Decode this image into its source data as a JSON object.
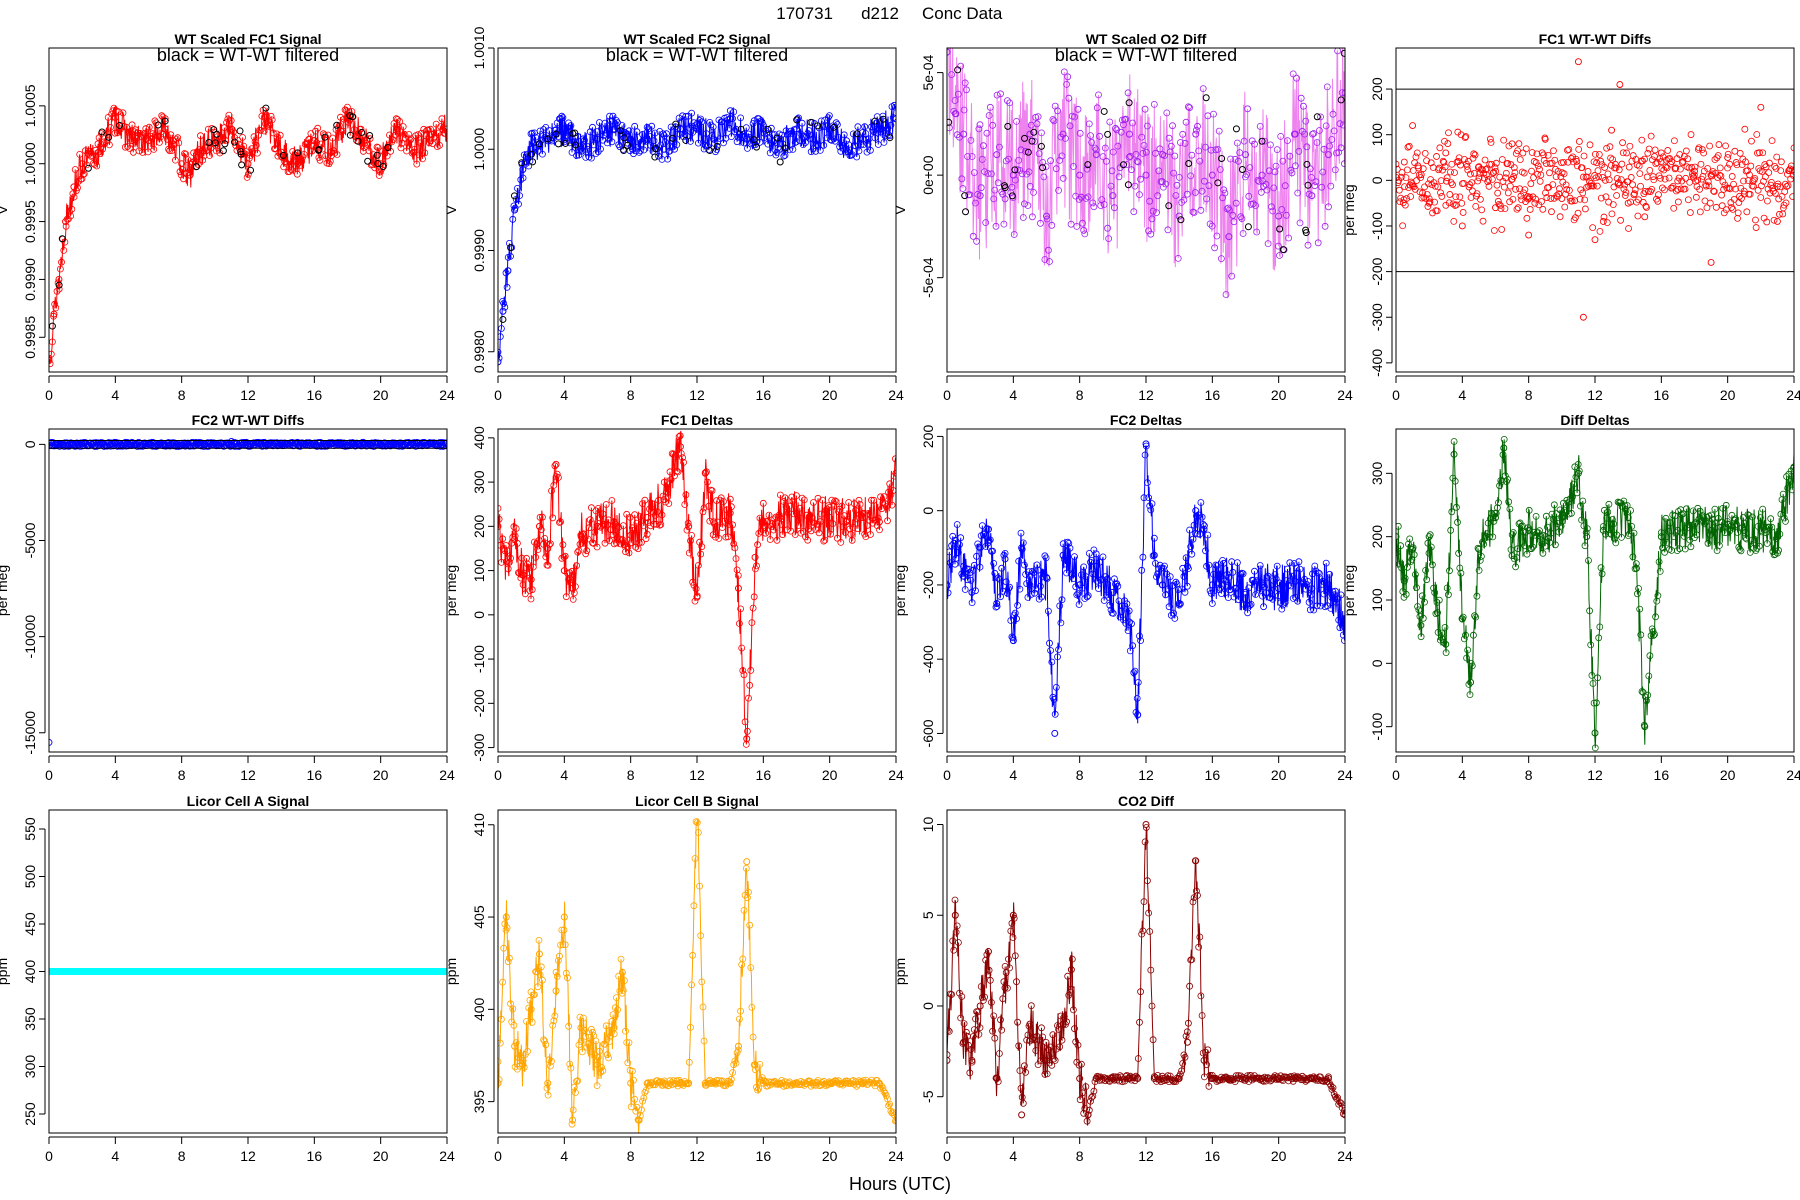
{
  "figure": {
    "title_date": "170731",
    "title_day": "d212",
    "title_label": "Conc Data",
    "xlabel": "Hours (UTC)"
  },
  "colors": {
    "red": "#ff0000",
    "blue": "#0000ff",
    "violet": "#ee82ee",
    "purple": "#a020f0",
    "green": "#006400",
    "cyan": "#00ffff",
    "orange": "#ffa500",
    "darkred": "#8b0000",
    "black": "#000000"
  },
  "chart_data": [
    {
      "id": "fc1_signal",
      "type": "line",
      "title": "WT Scaled FC1 Signal",
      "subtitle": "black = WT-WT filtered",
      "ylabel": "V",
      "xlim": [
        0,
        24
      ],
      "ylim": [
        0.9982,
        1.001
      ],
      "xticks": [
        "0",
        "4",
        "8",
        "12",
        "16",
        "20",
        "24"
      ],
      "yticks": [
        0.9985,
        0.999,
        0.9995,
        1.0,
        1.0005
      ],
      "ytick_labels": [
        "0.9985",
        "0.9990",
        "0.9995",
        "1.0000",
        "1.0005"
      ],
      "color": "red",
      "point_color": "red",
      "filtered_color": "black",
      "series": {
        "x": [
          0,
          0.3,
          0.6,
          1,
          1.5,
          2,
          3,
          4,
          5,
          6,
          7,
          7.5,
          8,
          8.5,
          9,
          10,
          11,
          12,
          13,
          14,
          15,
          16,
          17,
          18,
          19,
          20,
          21,
          22,
          23,
          24
        ],
        "y": [
          0.9983,
          0.9987,
          0.999,
          0.9995,
          0.9998,
          1.0,
          1.0001,
          1.0004,
          1.0002,
          1.0002,
          1.0003,
          1.0002,
          1.0,
          0.9999,
          1.0001,
          1.0002,
          1.0003,
          1.0,
          1.0004,
          1.0001,
          1.0,
          1.0002,
          1.0001,
          1.0004,
          1.0002,
          1.0,
          1.0003,
          1.0001,
          1.0002,
          1.0003
        ]
      }
    },
    {
      "id": "fc2_signal",
      "type": "line",
      "title": "WT Scaled FC2 Signal",
      "subtitle": "black = WT-WT filtered",
      "ylabel": "V",
      "xlim": [
        0,
        24
      ],
      "ylim": [
        0.9978,
        1.001
      ],
      "xticks": [
        "0",
        "4",
        "8",
        "12",
        "16",
        "20",
        "24"
      ],
      "yticks": [
        0.998,
        0.999,
        1.0,
        1.001
      ],
      "ytick_labels": [
        "0.9980",
        "0.9990",
        "1.0000",
        "1.0010"
      ],
      "color": "blue",
      "point_color": "blue",
      "filtered_color": "black",
      "series": {
        "x": [
          0,
          0.3,
          0.6,
          1,
          1.5,
          2,
          3,
          4,
          5,
          6,
          7,
          8,
          9,
          10,
          11,
          12,
          13,
          14,
          15,
          16,
          17,
          18,
          19,
          20,
          21,
          22,
          23,
          24
        ],
        "y": [
          0.9979,
          0.9984,
          0.9988,
          0.9994,
          0.9998,
          1.0,
          1.0001,
          1.0002,
          1.0,
          1.0001,
          1.0002,
          1.0001,
          1.0001,
          1.0,
          1.0002,
          1.0002,
          1.0001,
          1.0003,
          1.0001,
          1.0002,
          1.0,
          1.0002,
          1.0001,
          1.0002,
          1.0,
          1.0001,
          1.0002,
          1.0003
        ]
      }
    },
    {
      "id": "o2_diff",
      "type": "line",
      "title": "WT Scaled O2 Diff",
      "subtitle": "black = WT-WT filtered",
      "ylabel": "V",
      "xlim": [
        0,
        24
      ],
      "ylim": [
        -0.00096,
        0.00062
      ],
      "xticks": [
        "0",
        "4",
        "8",
        "12",
        "16",
        "20",
        "24"
      ],
      "yticks": [
        -0.0005,
        0.0,
        0.0005
      ],
      "ytick_labels": [
        "-5e-04",
        "0e+00",
        "5e-04"
      ],
      "color": "violet",
      "point_color": "purple",
      "filtered_color": "black",
      "series": {
        "x": [
          0,
          0.5,
          1,
          2,
          3,
          4,
          5,
          6,
          7,
          8,
          9,
          10,
          11,
          12,
          13,
          14,
          15,
          16,
          17,
          18,
          19,
          20,
          21,
          22,
          23,
          24
        ],
        "y": [
          0.0006,
          0.0003,
          0.0002,
          -0.0001,
          0.0001,
          0.0,
          0.0002,
          -0.0002,
          0.0002,
          0.0,
          0.0001,
          -0.0001,
          0.0002,
          0.0,
          0.0001,
          -0.0002,
          0.0002,
          0.0,
          -0.0003,
          0.0001,
          0.0,
          -0.0002,
          0.0002,
          -0.0001,
          0.0001,
          0.0004
        ]
      }
    },
    {
      "id": "fc1_wtwt",
      "type": "scatter",
      "title": "FC1 WT-WT Diffs",
      "ylabel": "per meg",
      "xlim": [
        0,
        24
      ],
      "ylim": [
        -420,
        290
      ],
      "xticks": [
        "0",
        "4",
        "8",
        "12",
        "16",
        "20",
        "24"
      ],
      "yticks": [
        -400,
        -300,
        -200,
        -100,
        0,
        100,
        200
      ],
      "ytick_labels": [
        "-400",
        "-300",
        "-200",
        "-100",
        "0",
        "100",
        "200"
      ],
      "point_color": "red",
      "hlines": [
        200,
        -200
      ],
      "series": {
        "x": [
          0.5,
          1,
          2,
          3,
          4,
          5,
          6,
          7,
          8,
          9,
          10,
          11,
          11.3,
          12,
          13,
          13.5,
          14,
          15,
          16,
          17,
          18,
          19,
          20,
          21,
          22,
          23,
          24
        ],
        "y": [
          40,
          120,
          -50,
          60,
          -100,
          30,
          -60,
          80,
          -120,
          90,
          -40,
          260,
          -300,
          -130,
          110,
          210,
          -50,
          -80,
          60,
          -20,
          20,
          -180,
          50,
          -30,
          160,
          -90,
          20
        ]
      }
    },
    {
      "id": "fc2_wtwt",
      "type": "scatter",
      "title": "FC2 WT-WT Diffs",
      "ylabel": "per meg",
      "xlim": [
        0,
        24
      ],
      "ylim": [
        -16000,
        800
      ],
      "xticks": [
        "0",
        "4",
        "8",
        "12",
        "16",
        "20",
        "24"
      ],
      "yticks": [
        -15000,
        -10000,
        -5000,
        0
      ],
      "ytick_labels": [
        "-15000",
        "-10000",
        "-5000",
        "0"
      ],
      "point_color": "blue",
      "hlines": [
        200,
        -200
      ],
      "series": {
        "x": [
          0,
          0.5,
          1,
          2,
          3,
          4,
          5,
          6,
          7,
          8,
          9,
          10,
          11,
          12,
          13,
          14,
          15,
          16,
          17,
          18,
          19,
          20,
          21,
          22,
          23,
          24
        ],
        "y": [
          -15500,
          50,
          -40,
          30,
          -60,
          80,
          -30,
          40,
          -20,
          60,
          -50,
          20,
          150,
          -80,
          40,
          -30,
          60,
          -20,
          30,
          -40,
          20,
          -10,
          40,
          -30,
          20,
          80
        ]
      }
    },
    {
      "id": "fc1_deltas",
      "type": "line",
      "title": "FC1 Deltas",
      "ylabel": "per meg",
      "xlim": [
        0,
        24
      ],
      "ylim": [
        -310,
        420
      ],
      "xticks": [
        "0",
        "4",
        "8",
        "12",
        "16",
        "20",
        "24"
      ],
      "yticks": [
        -300,
        -200,
        -100,
        0,
        100,
        200,
        300,
        400
      ],
      "ytick_labels": [
        "-300",
        "-200",
        "-100",
        "0",
        "100",
        "200",
        "300",
        "400"
      ],
      "color": "red",
      "point_color": "red",
      "series": {
        "x": [
          0,
          0.5,
          1,
          1.5,
          2,
          2.5,
          3,
          3.5,
          4,
          4.5,
          5,
          6,
          7,
          8,
          9,
          10,
          11,
          11.5,
          12,
          12.5,
          13,
          14,
          14.5,
          15,
          15.5,
          16,
          17,
          18,
          19,
          20,
          21,
          22,
          23,
          24
        ],
        "y": [
          200,
          120,
          170,
          90,
          80,
          200,
          150,
          340,
          100,
          60,
          180,
          200,
          210,
          180,
          220,
          260,
          380,
          200,
          40,
          320,
          210,
          230,
          60,
          -280,
          130,
          210,
          220,
          230,
          210,
          220,
          210,
          220,
          210,
          320
        ]
      }
    },
    {
      "id": "fc2_deltas",
      "type": "line",
      "title": "FC2 Deltas",
      "ylabel": "per meg",
      "xlim": [
        0,
        24
      ],
      "ylim": [
        -650,
        220
      ],
      "xticks": [
        "0",
        "4",
        "8",
        "12",
        "16",
        "20",
        "24"
      ],
      "yticks": [
        -600,
        -400,
        -200,
        0,
        200
      ],
      "ytick_labels": [
        "-600",
        "-400",
        "-200",
        "0",
        "200"
      ],
      "color": "blue",
      "point_color": "blue",
      "series": {
        "x": [
          0,
          0.5,
          1,
          1.5,
          2,
          2.5,
          3,
          3.5,
          4,
          4.5,
          5,
          6,
          6.5,
          7,
          8,
          9,
          10,
          11,
          11.5,
          12,
          12.5,
          13,
          14,
          14.5,
          15,
          15.5,
          16,
          17,
          18,
          19,
          20,
          21,
          22,
          23,
          24
        ],
        "y": [
          -200,
          -80,
          -150,
          -220,
          -100,
          -50,
          -250,
          -130,
          -350,
          -100,
          -200,
          -180,
          -600,
          -120,
          -200,
          -150,
          -220,
          -300,
          -550,
          180,
          -120,
          -200,
          -250,
          -150,
          0,
          -50,
          -200,
          -180,
          -220,
          -200,
          -210,
          -190,
          -210,
          -200,
          -300
        ]
      }
    },
    {
      "id": "diff_deltas",
      "type": "line",
      "title": "Diff Deltas",
      "ylabel": "per meg",
      "xlim": [
        0,
        24
      ],
      "ylim": [
        -140,
        370
      ],
      "xticks": [
        "0",
        "4",
        "8",
        "12",
        "16",
        "20",
        "24"
      ],
      "yticks": [
        -100,
        0,
        100,
        200,
        300
      ],
      "ytick_labels": [
        "-100",
        "0",
        "100",
        "200",
        "300"
      ],
      "color": "green",
      "point_color": "green",
      "series": {
        "x": [
          0,
          0.5,
          1,
          1.5,
          2,
          2.5,
          3,
          3.5,
          4,
          4.5,
          5,
          6,
          6.5,
          7,
          8,
          9,
          10,
          11,
          11.5,
          12,
          12.5,
          13,
          14,
          14.5,
          15,
          15.5,
          16,
          17,
          18,
          19,
          20,
          21,
          22,
          23,
          24
        ],
        "y": [
          200,
          130,
          180,
          60,
          200,
          80,
          30,
          330,
          70,
          -30,
          180,
          230,
          340,
          170,
          210,
          200,
          230,
          300,
          200,
          -110,
          210,
          220,
          230,
          150,
          -100,
          50,
          200,
          210,
          220,
          210,
          220,
          210,
          210,
          200,
          310
        ]
      }
    },
    {
      "id": "licor_a",
      "type": "scatter",
      "title": "Licor Cell A Signal",
      "ylabel": "ppm",
      "xlim": [
        0,
        24
      ],
      "ylim": [
        230,
        570
      ],
      "xticks": [
        "0",
        "4",
        "8",
        "12",
        "16",
        "20",
        "24"
      ],
      "yticks": [
        250,
        300,
        350,
        400,
        450,
        500,
        550
      ],
      "ytick_labels": [
        "250",
        "300",
        "350",
        "400",
        "450",
        "500",
        "550"
      ],
      "point_color": "cyan",
      "series": {
        "x": [
          0,
          24
        ],
        "y": [
          400,
          400
        ]
      }
    },
    {
      "id": "licor_b",
      "type": "line",
      "title": "Licor Cell B Signal",
      "ylabel": "ppm",
      "xlim": [
        0,
        24
      ],
      "ylim": [
        393.3,
        410.8
      ],
      "xticks": [
        "0",
        "4",
        "8",
        "12",
        "16",
        "20",
        "24"
      ],
      "yticks": [
        395,
        400,
        405,
        410
      ],
      "ytick_labels": [
        "395",
        "400",
        "405",
        "410"
      ],
      "color": "orange",
      "point_color": "orange",
      "series": {
        "x": [
          0,
          0.5,
          1,
          1.5,
          2,
          2.5,
          3,
          3.5,
          4,
          4.5,
          5,
          6,
          7,
          7.5,
          8,
          8.5,
          9,
          10,
          11,
          11.5,
          12,
          12.5,
          13,
          14,
          14.5,
          15,
          15.5,
          16,
          17,
          18,
          19,
          20,
          21,
          22,
          23,
          24
        ],
        "y": [
          396,
          405,
          398,
          397,
          400,
          403,
          396,
          401,
          405,
          394,
          399,
          397,
          399,
          402,
          396,
          394,
          396,
          396,
          396,
          396,
          411,
          396,
          396,
          396,
          398,
          408,
          397,
          396,
          396,
          396,
          396,
          396,
          396,
          396,
          396,
          394
        ]
      }
    },
    {
      "id": "co2_diff",
      "type": "line",
      "title": "CO2 Diff",
      "ylabel": "ppm",
      "xlim": [
        0,
        24
      ],
      "ylim": [
        -7,
        10.8
      ],
      "xticks": [
        "0",
        "4",
        "8",
        "12",
        "16",
        "20",
        "24"
      ],
      "yticks": [
        -5,
        0,
        5,
        10
      ],
      "ytick_labels": [
        "-5",
        "0",
        "5",
        "10"
      ],
      "color": "darkred",
      "point_color": "darkred",
      "series": {
        "x": [
          0,
          0.5,
          1,
          1.5,
          2,
          2.5,
          3,
          3.5,
          4,
          4.5,
          5,
          6,
          7,
          7.5,
          8,
          8.5,
          9,
          10,
          11,
          11.5,
          12,
          12.5,
          13,
          14,
          14.5,
          15,
          15.5,
          16,
          17,
          18,
          19,
          20,
          21,
          22,
          23,
          24
        ],
        "y": [
          -3,
          5,
          -2,
          -3,
          0,
          3,
          -4,
          1,
          5,
          -6,
          -1,
          -3,
          -1,
          2,
          -4,
          -6,
          -4,
          -4,
          -4,
          -4,
          10,
          -4,
          -4,
          -4,
          -2,
          8,
          -3,
          -4,
          -4,
          -4,
          -4,
          -4,
          -4,
          -4,
          -4,
          -6
        ]
      }
    }
  ]
}
